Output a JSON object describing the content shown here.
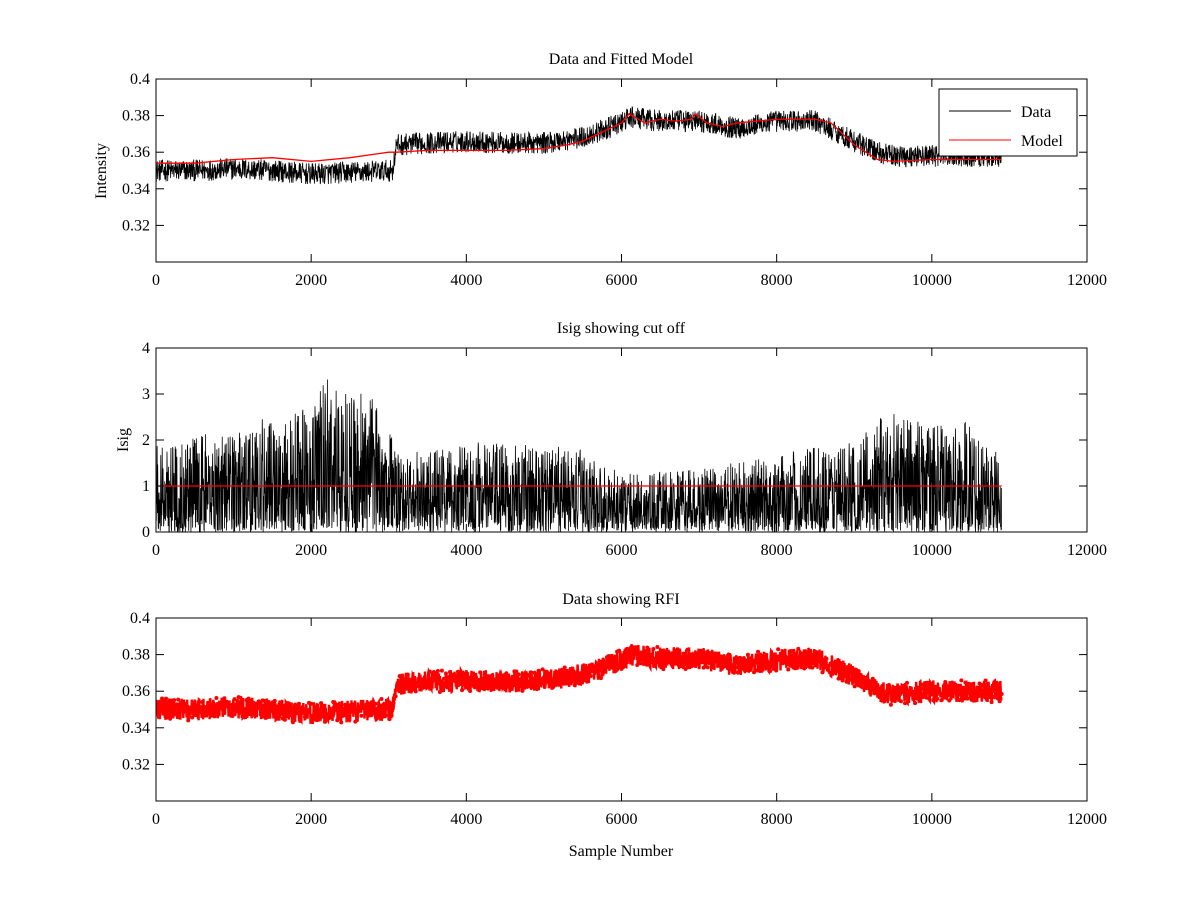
{
  "chart_data": [
    {
      "type": "line",
      "title": "Data and Fitted Model",
      "xlabel": "",
      "ylabel": "Intensity",
      "xlim": [
        0,
        12000
      ],
      "ylim": [
        0.3,
        0.4
      ],
      "xticks": [
        0,
        2000,
        4000,
        6000,
        8000,
        10000,
        12000
      ],
      "xtick_labels": [
        "0",
        "2000",
        "4000",
        "6000",
        "8000",
        "10000",
        "12000"
      ],
      "yticks": [
        0.32,
        0.34,
        0.36,
        0.38,
        0.4
      ],
      "ytick_labels": [
        "0.32",
        "0.34",
        "0.36",
        "0.38",
        "0.4"
      ],
      "grid": false,
      "legend": "top-right",
      "series": [
        {
          "name": "Data",
          "color": "#000000",
          "style": "noisy-line",
          "noise_amplitude": 0.006,
          "x": [
            0,
            500,
            1000,
            1500,
            2000,
            2500,
            3050,
            3100,
            3500,
            4000,
            4500,
            5000,
            5500,
            6000,
            6100,
            6500,
            7000,
            7500,
            8000,
            8500,
            9000,
            9300,
            9500,
            10000,
            10500,
            10900
          ],
          "y": [
            0.35,
            0.35,
            0.351,
            0.35,
            0.348,
            0.349,
            0.35,
            0.364,
            0.365,
            0.366,
            0.365,
            0.365,
            0.368,
            0.376,
            0.379,
            0.377,
            0.377,
            0.373,
            0.377,
            0.377,
            0.366,
            0.36,
            0.358,
            0.358,
            0.358,
            0.358
          ]
        },
        {
          "name": "Model",
          "color": "#ff0000",
          "style": "line",
          "x": [
            0,
            500,
            1000,
            1500,
            2000,
            2500,
            3000,
            3100,
            3500,
            4000,
            4500,
            5000,
            5300,
            5500,
            5800,
            6000,
            6100,
            6300,
            6500,
            6700,
            6900,
            6950,
            7100,
            7300,
            7500,
            8000,
            8500,
            8700,
            9000,
            9300,
            9500,
            10000,
            10500,
            10900
          ],
          "y": [
            0.354,
            0.354,
            0.356,
            0.357,
            0.355,
            0.357,
            0.36,
            0.36,
            0.361,
            0.361,
            0.361,
            0.362,
            0.364,
            0.366,
            0.372,
            0.376,
            0.381,
            0.376,
            0.378,
            0.377,
            0.378,
            0.381,
            0.376,
            0.374,
            0.376,
            0.378,
            0.378,
            0.376,
            0.364,
            0.356,
            0.355,
            0.356,
            0.356,
            0.356
          ]
        }
      ]
    },
    {
      "type": "line",
      "title": "Isig showing cut off",
      "xlabel": "",
      "ylabel": "Isig",
      "xlim": [
        0,
        12000
      ],
      "ylim": [
        0,
        4
      ],
      "xticks": [
        0,
        2000,
        4000,
        6000,
        8000,
        10000,
        12000
      ],
      "xtick_labels": [
        "0",
        "2000",
        "4000",
        "6000",
        "8000",
        "10000",
        "12000"
      ],
      "yticks": [
        0,
        1,
        2,
        3,
        4
      ],
      "ytick_labels": [
        "0",
        "1",
        "2",
        "3",
        "4"
      ],
      "grid": false,
      "series": [
        {
          "name": "",
          "color": "#000000",
          "style": "spiky-envelope",
          "x": [
            0,
            1000,
            2000,
            2200,
            3000,
            3100,
            4000,
            5000,
            5500,
            6000,
            7000,
            8000,
            9000,
            9500,
            10000,
            10500,
            10900
          ],
          "envelope": [
            1.8,
            2.2,
            2.6,
            3.2,
            2.6,
            1.6,
            1.9,
            1.8,
            1.7,
            1.2,
            1.3,
            1.6,
            1.9,
            2.6,
            2.2,
            2.3,
            1.6
          ]
        },
        {
          "name": "",
          "color": "#ff0000",
          "style": "line",
          "x": [
            0,
            10900
          ],
          "y": [
            1,
            1
          ]
        }
      ]
    },
    {
      "type": "scatter",
      "title": "Data showing RFI",
      "xlabel": "Sample Number",
      "ylabel": "",
      "xlim": [
        0,
        12000
      ],
      "ylim": [
        0.3,
        0.4
      ],
      "xticks": [
        0,
        2000,
        4000,
        6000,
        8000,
        10000,
        12000
      ],
      "xtick_labels": [
        "0",
        "2000",
        "4000",
        "6000",
        "8000",
        "10000",
        "12000"
      ],
      "yticks": [
        0.32,
        0.34,
        0.36,
        0.38,
        0.4
      ],
      "ytick_labels": [
        "0.32",
        "0.34",
        "0.36",
        "0.38",
        "0.4"
      ],
      "grid": false,
      "series": [
        {
          "name": "",
          "color": "#ff0000",
          "style": "noisy-markers",
          "noise_amplitude": 0.006,
          "x": [
            0,
            500,
            1000,
            1500,
            2000,
            2500,
            3050,
            3100,
            3500,
            4000,
            4500,
            5000,
            5500,
            6000,
            6100,
            6500,
            7000,
            7500,
            8000,
            8500,
            9000,
            9300,
            9500,
            10000,
            10500,
            10900
          ],
          "y": [
            0.35,
            0.35,
            0.351,
            0.35,
            0.348,
            0.349,
            0.35,
            0.364,
            0.365,
            0.366,
            0.365,
            0.366,
            0.369,
            0.377,
            0.38,
            0.378,
            0.378,
            0.374,
            0.377,
            0.378,
            0.368,
            0.36,
            0.358,
            0.36,
            0.36,
            0.36
          ]
        }
      ]
    }
  ]
}
